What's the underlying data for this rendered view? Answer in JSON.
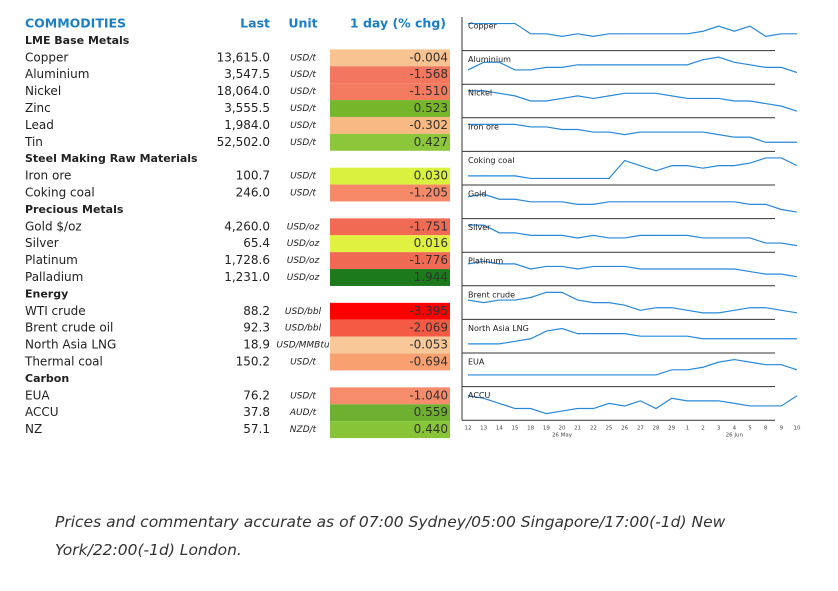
{
  "header": {
    "title": "COMMODITIES",
    "last": "Last",
    "unit": "Unit",
    "change": "1 day (% chg)"
  },
  "groups": [
    {
      "name": "LME Base Metals",
      "rows": [
        {
          "name": "Copper",
          "last": "13,615.0",
          "unit": "USD/t",
          "change": "-0.004",
          "color": "#f9c391"
        },
        {
          "name": "Aluminium",
          "last": "3,547.5",
          "unit": "USD/t",
          "change": "-1.568",
          "color": "#f2775e"
        },
        {
          "name": "Nickel",
          "last": "18,064.0",
          "unit": "USD/t",
          "change": "-1.510",
          "color": "#f37b5f"
        },
        {
          "name": "Zinc",
          "last": "3,555.5",
          "unit": "USD/t",
          "change": "0.523",
          "color": "#76b62a"
        },
        {
          "name": "Lead",
          "last": "1,984.0",
          "unit": "USD/t",
          "change": "-0.302",
          "color": "#f9b983"
        },
        {
          "name": "Tin",
          "last": "52,502.0",
          "unit": "USD/t",
          "change": "0.427",
          "color": "#8cc63a"
        }
      ]
    },
    {
      "name": "Steel Making Raw Materials",
      "rows": [
        {
          "name": "Iron ore",
          "last": "100.7",
          "unit": "USD/t",
          "change": "0.030",
          "color": "#d9f23f"
        },
        {
          "name": "Coking coal",
          "last": "246.0",
          "unit": "USD/t",
          "change": "-1.205",
          "color": "#f68a68"
        }
      ]
    },
    {
      "name": "Precious Metals",
      "rows": [
        {
          "name": "Gold $/oz",
          "last": "4,260.0",
          "unit": "USD/oz",
          "change": "-1.751",
          "color": "#f06a54"
        },
        {
          "name": "Silver",
          "last": "65.4",
          "unit": "USD/oz",
          "change": "0.016",
          "color": "#e1f140"
        },
        {
          "name": "Platinum",
          "last": "1,728.6",
          "unit": "USD/oz",
          "change": "-1.776",
          "color": "#f06953"
        },
        {
          "name": "Palladium",
          "last": "1,231.0",
          "unit": "USD/oz",
          "change": "1.944",
          "color": "#1c7a1c"
        }
      ]
    },
    {
      "name": "Energy",
      "rows": [
        {
          "name": "WTI crude",
          "last": "88.2",
          "unit": "USD/bbl",
          "change": "-3.395",
          "color": "#ff0000"
        },
        {
          "name": "Brent crude oil",
          "last": "92.3",
          "unit": "USD/bbl",
          "change": "-2.069",
          "color": "#f55a44"
        },
        {
          "name": "North Asia LNG",
          "last": "18.9",
          "unit": "USD/MMBtu",
          "change": "-0.053",
          "color": "#f9c898"
        },
        {
          "name": "Thermal coal",
          "last": "150.2",
          "unit": "USD/t",
          "change": "-0.694",
          "color": "#f8a070"
        }
      ]
    },
    {
      "name": "Carbon",
      "rows": [
        {
          "name": "EUA",
          "last": "76.2",
          "unit": "USD/t",
          "change": "-1.040",
          "color": "#f68c6c"
        },
        {
          "name": "ACCU",
          "last": "37.8",
          "unit": "AUD/t",
          "change": "0.559",
          "color": "#70b030"
        },
        {
          "name": "NZ",
          "last": "57.1",
          "unit": "NZD/t",
          "change": "0.440",
          "color": "#88c438"
        }
      ]
    }
  ],
  "sparklines": {
    "color": "#2a88d8",
    "dates": [
      "12",
      "13",
      "14",
      "15",
      "18",
      "19",
      "20",
      "21",
      "22",
      "25",
      "26",
      "27",
      "28",
      "29",
      "1",
      "2",
      "3",
      "4",
      "5",
      "8",
      "9",
      "10"
    ],
    "month_labels": [
      {
        "at": 6,
        "label": "26 May"
      },
      {
        "at": 17,
        "label": "26 Jun"
      }
    ],
    "series": [
      {
        "label": "Copper",
        "values": [
          9,
          9,
          9,
          9,
          5,
          5,
          4,
          5,
          4,
          5,
          5,
          5,
          5,
          5,
          5,
          6,
          8,
          6,
          8,
          4,
          5,
          5
        ]
      },
      {
        "label": "Aluminium",
        "values": [
          4,
          7,
          7,
          4,
          4,
          5,
          5,
          6,
          6,
          6,
          6,
          6,
          6,
          6,
          6,
          8,
          9,
          7,
          6,
          5,
          5,
          3
        ]
      },
      {
        "label": "Nickel",
        "values": [
          9,
          9,
          8,
          7,
          5,
          5,
          6,
          7,
          6,
          7,
          8,
          8,
          8,
          7,
          6,
          6,
          6,
          5,
          5,
          4,
          3,
          1
        ]
      },
      {
        "label": "Iron ore",
        "values": [
          9,
          9,
          9,
          9,
          8,
          8,
          7,
          7,
          6,
          6,
          5,
          6,
          6,
          6,
          6,
          6,
          5,
          4,
          4,
          2,
          2,
          2
        ]
      },
      {
        "label": "Coking coal",
        "values": [
          2,
          2,
          2,
          2,
          1,
          1,
          1,
          1,
          1,
          1,
          8,
          6,
          4,
          6,
          6,
          5,
          6,
          6,
          7,
          9,
          9,
          6
        ]
      },
      {
        "label": "Gold",
        "values": [
          7,
          8,
          6,
          6,
          5,
          5,
          5,
          4,
          4,
          5,
          5,
          5,
          5,
          5,
          5,
          5,
          5,
          5,
          4,
          4,
          2,
          1
        ]
      },
      {
        "label": "Silver",
        "values": [
          9,
          9,
          6,
          6,
          5,
          5,
          5,
          4,
          5,
          4,
          4,
          5,
          5,
          5,
          5,
          4,
          4,
          4,
          4,
          2,
          2,
          1
        ]
      },
      {
        "label": "Platinum",
        "values": [
          7,
          8,
          7,
          7,
          5,
          6,
          6,
          5,
          6,
          6,
          6,
          5,
          5,
          5,
          5,
          5,
          5,
          5,
          4,
          3,
          3,
          2
        ]
      },
      {
        "label": "Brent crude",
        "values": [
          6,
          5,
          6,
          6,
          7,
          9,
          9,
          6,
          5,
          5,
          4,
          2,
          3,
          3,
          2,
          1,
          1,
          2,
          3,
          3,
          2,
          1
        ]
      },
      {
        "label": "North Asia LNG",
        "values": [
          2,
          2,
          2,
          3,
          4,
          7,
          8,
          6,
          6,
          6,
          6,
          5,
          5,
          5,
          5,
          4,
          4,
          4,
          4,
          4,
          4,
          4
        ]
      },
      {
        "label": "EUA",
        "values": [
          3,
          3,
          3,
          3,
          3,
          3,
          3,
          3,
          3,
          3,
          3,
          3,
          3,
          5,
          5,
          6,
          8,
          9,
          8,
          7,
          7,
          5
        ]
      },
      {
        "label": "ACCU",
        "values": [
          8,
          7,
          5,
          3,
          3,
          1,
          2,
          3,
          3,
          5,
          4,
          6,
          3,
          7,
          6,
          6,
          6,
          5,
          4,
          4,
          4,
          8
        ]
      }
    ]
  },
  "note": "Prices and commentary accurate as of 07:00 Sydney/05:00 Singapore/17:00(-1d) New York/22:00(-1d) London."
}
